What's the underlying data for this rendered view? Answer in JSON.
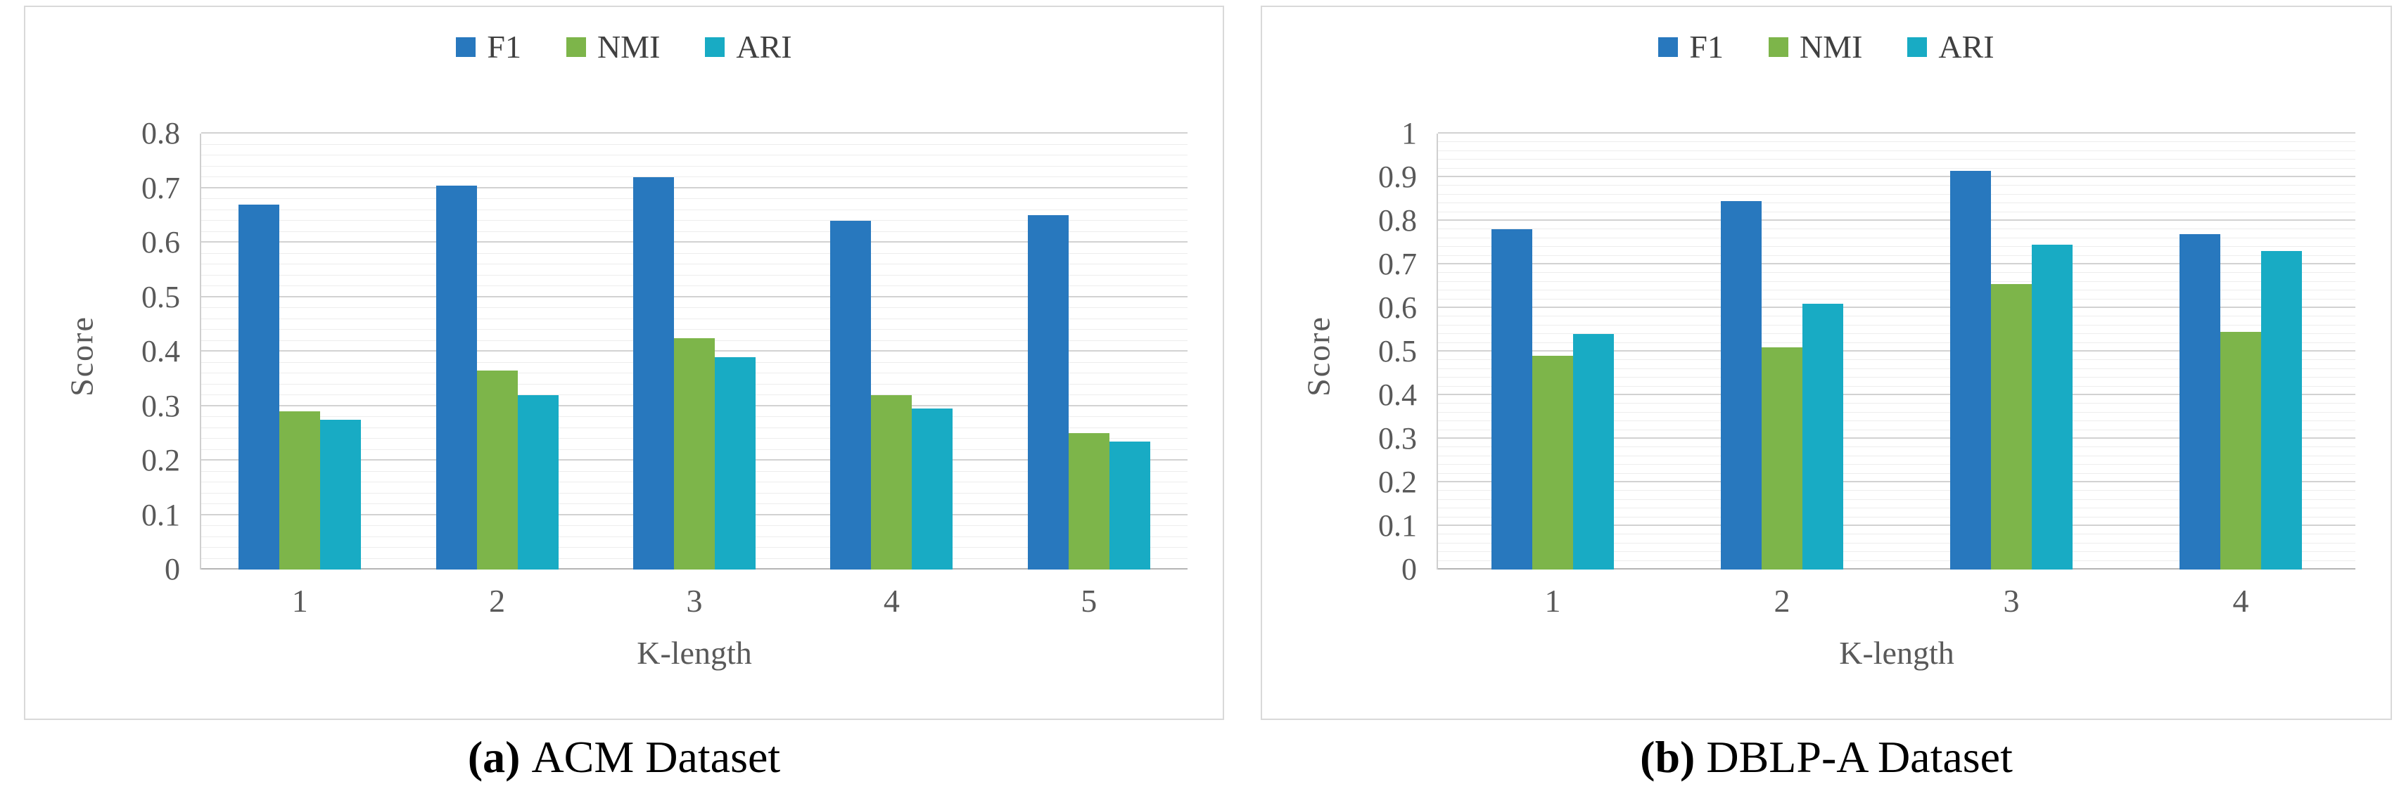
{
  "colors": {
    "f1_blue": "#2878BE",
    "nmi_green": "#7DB54A",
    "ari_cyan": "#18ABC4",
    "grid_major": "#d2d2d2",
    "grid_minor": "#ededed",
    "axis_text": "#595959",
    "legend_text": "#404040",
    "panel_border": "#d9d9d9"
  },
  "chart_data": [
    {
      "type": "bar",
      "caption_marker": "(a)",
      "caption": "ACM Dataset",
      "xlabel": "K-length",
      "ylabel": "Score",
      "ylim": [
        0,
        0.8
      ],
      "ytick_step": 0.1,
      "minor_step": 0.02,
      "grid": true,
      "legend_position": "top-center",
      "categories": [
        "1",
        "2",
        "3",
        "4",
        "5"
      ],
      "series": [
        {
          "name": "F1",
          "color": "#2878BE",
          "values": [
            0.67,
            0.705,
            0.72,
            0.64,
            0.65
          ]
        },
        {
          "name": "NMI",
          "color": "#7DB54A",
          "values": [
            0.29,
            0.365,
            0.425,
            0.32,
            0.25
          ]
        },
        {
          "name": "ARI",
          "color": "#18ABC4",
          "values": [
            0.275,
            0.32,
            0.39,
            0.295,
            0.235
          ]
        }
      ]
    },
    {
      "type": "bar",
      "caption_marker": "(b)",
      "caption": "DBLP-A Dataset",
      "xlabel": "K-length",
      "ylabel": "Score",
      "ylim": [
        0,
        1
      ],
      "ytick_step": 0.1,
      "minor_step": 0.02,
      "grid": true,
      "legend_position": "top-center",
      "categories": [
        "1",
        "2",
        "3",
        "4"
      ],
      "series": [
        {
          "name": "F1",
          "color": "#2878BE",
          "values": [
            0.78,
            0.845,
            0.915,
            0.77
          ]
        },
        {
          "name": "NMI",
          "color": "#7DB54A",
          "values": [
            0.49,
            0.51,
            0.655,
            0.545
          ]
        },
        {
          "name": "ARI",
          "color": "#18ABC4",
          "values": [
            0.54,
            0.61,
            0.745,
            0.73
          ]
        }
      ]
    }
  ]
}
